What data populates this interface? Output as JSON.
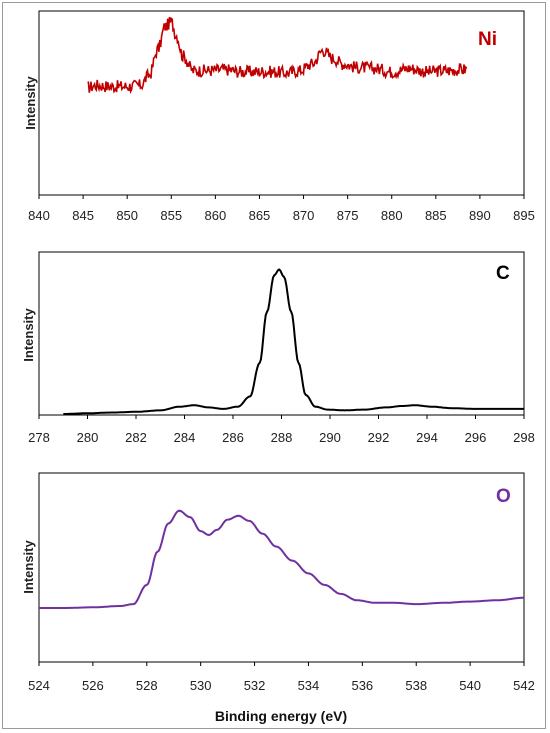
{
  "chart_data": [
    {
      "type": "line",
      "label": "Ni",
      "ylabel": "Intensity",
      "xlim": [
        840,
        895
      ],
      "xticks": [
        840,
        845,
        850,
        855,
        860,
        865,
        870,
        875,
        880,
        885,
        890,
        895
      ],
      "series_color": "#c00000",
      "noise": 0.55,
      "ylim": [
        0,
        10
      ],
      "x": [
        845.5,
        846.5,
        848,
        850,
        851.5,
        852.5,
        853.5,
        854.3,
        855,
        855.6,
        856.3,
        857.5,
        859,
        861,
        863,
        865,
        866.5,
        868,
        869.5,
        871,
        872.2,
        873.3,
        874.5,
        876,
        878,
        880,
        882,
        884,
        886,
        888.5
      ],
      "y": [
        4.2,
        4.4,
        4.3,
        4.3,
        4.4,
        5.3,
        7.6,
        9.6,
        10.0,
        8.8,
        7.0,
        5.7,
        5.7,
        5.8,
        5.6,
        5.6,
        5.6,
        5.5,
        5.7,
        6.3,
        7.5,
        6.8,
        6.3,
        6.0,
        5.9,
        5.6,
        5.9,
        5.6,
        5.7,
        5.8
      ]
    },
    {
      "type": "line",
      "label": "C",
      "ylabel": "Intensity",
      "xlim": [
        278,
        298
      ],
      "xticks": [
        278,
        280,
        282,
        284,
        286,
        288,
        290,
        292,
        294,
        296,
        298
      ],
      "series_color": "#000000",
      "noise": 0,
      "ylim": [
        0,
        10
      ],
      "x": [
        279,
        280,
        281,
        282,
        283,
        283.8,
        284.4,
        285,
        285.6,
        286.2,
        286.7,
        287.1,
        287.4,
        287.7,
        287.9,
        288.1,
        288.4,
        288.7,
        289,
        289.4,
        289.9,
        290.6,
        291.4,
        292.3,
        293,
        293.5,
        294.2,
        295,
        296,
        297,
        298
      ],
      "y": [
        0.0,
        0.05,
        0.1,
        0.15,
        0.25,
        0.5,
        0.6,
        0.45,
        0.35,
        0.5,
        1.2,
        3.5,
        7.0,
        9.5,
        9.9,
        9.4,
        7.0,
        3.5,
        1.3,
        0.5,
        0.3,
        0.25,
        0.3,
        0.45,
        0.55,
        0.6,
        0.5,
        0.4,
        0.35,
        0.35,
        0.35
      ]
    },
    {
      "type": "line",
      "label": "O",
      "ylabel": "Intensity",
      "xlabel": "Binding energy (eV)",
      "xlim": [
        524,
        542
      ],
      "xticks": [
        524,
        526,
        528,
        530,
        532,
        534,
        536,
        538,
        540,
        542
      ],
      "series_color": "#7030a0",
      "noise": 0,
      "ylim": [
        0,
        10
      ],
      "x": [
        524,
        525,
        526,
        527,
        527.5,
        528,
        528.4,
        528.8,
        529.2,
        529.6,
        530,
        530.3,
        530.6,
        531,
        531.4,
        531.8,
        532.3,
        532.8,
        533.4,
        534,
        534.6,
        535.2,
        535.8,
        536.5,
        537.2,
        538,
        539,
        540,
        541,
        542
      ],
      "y": [
        1.8,
        1.8,
        1.85,
        1.95,
        2.1,
        3.6,
        6.2,
        8.4,
        9.4,
        8.9,
        7.8,
        7.5,
        7.9,
        8.7,
        9.0,
        8.6,
        7.6,
        6.6,
        5.5,
        4.5,
        3.6,
        2.9,
        2.4,
        2.2,
        2.2,
        2.1,
        2.2,
        2.3,
        2.4,
        2.6
      ]
    }
  ]
}
